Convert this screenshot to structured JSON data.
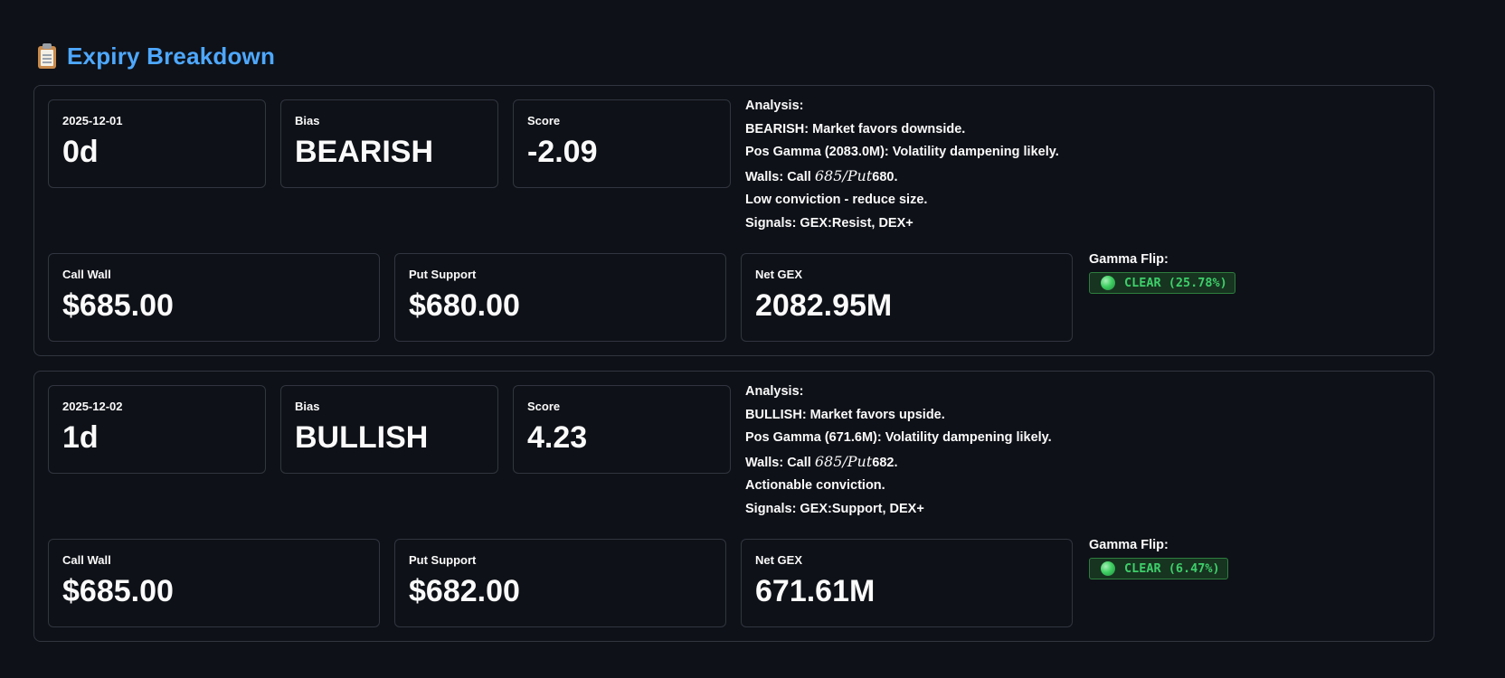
{
  "section": {
    "icon": "clipboard-icon",
    "title": "Expiry Breakdown",
    "title_color": "#4ea8ff"
  },
  "expiries": [
    {
      "date": "2025-12-01",
      "dte": "0d",
      "bias_label": "Bias",
      "bias": "BEARISH",
      "score_label": "Score",
      "score": "-2.09",
      "analysis_label": "Analysis:",
      "analysis_line1": "BEARISH: Market favors downside.",
      "analysis_line2": "Pos Gamma (2083.0M): Volatility dampening likely.",
      "walls_prefix": "Walls: Call",
      "walls_math": "685/Put",
      "walls_suffix": "680.",
      "analysis_line4": "Low conviction - reduce size.",
      "analysis_line5": "Signals: GEX:Resist, DEX+",
      "call_wall_label": "Call Wall",
      "call_wall": "$685.00",
      "put_support_label": "Put Support",
      "put_support": "$680.00",
      "net_gex_label": "Net GEX",
      "net_gex": "2082.95M",
      "gamma_flip_label": "Gamma Flip:",
      "gamma_flip_status": "CLEAR (25.78%)",
      "status_color": "#3ecf6a"
    },
    {
      "date": "2025-12-02",
      "dte": "1d",
      "bias_label": "Bias",
      "bias": "BULLISH",
      "score_label": "Score",
      "score": "4.23",
      "analysis_label": "Analysis:",
      "analysis_line1": "BULLISH: Market favors upside.",
      "analysis_line2": "Pos Gamma (671.6M): Volatility dampening likely.",
      "walls_prefix": "Walls: Call",
      "walls_math": "685/Put",
      "walls_suffix": "682.",
      "analysis_line4": "Actionable conviction.",
      "analysis_line5": "Signals: GEX:Support, DEX+",
      "call_wall_label": "Call Wall",
      "call_wall": "$685.00",
      "put_support_label": "Put Support",
      "put_support": "$682.00",
      "net_gex_label": "Net GEX",
      "net_gex": "671.61M",
      "gamma_flip_label": "Gamma Flip:",
      "gamma_flip_status": "CLEAR (6.47%)",
      "status_color": "#3ecf6a"
    }
  ]
}
